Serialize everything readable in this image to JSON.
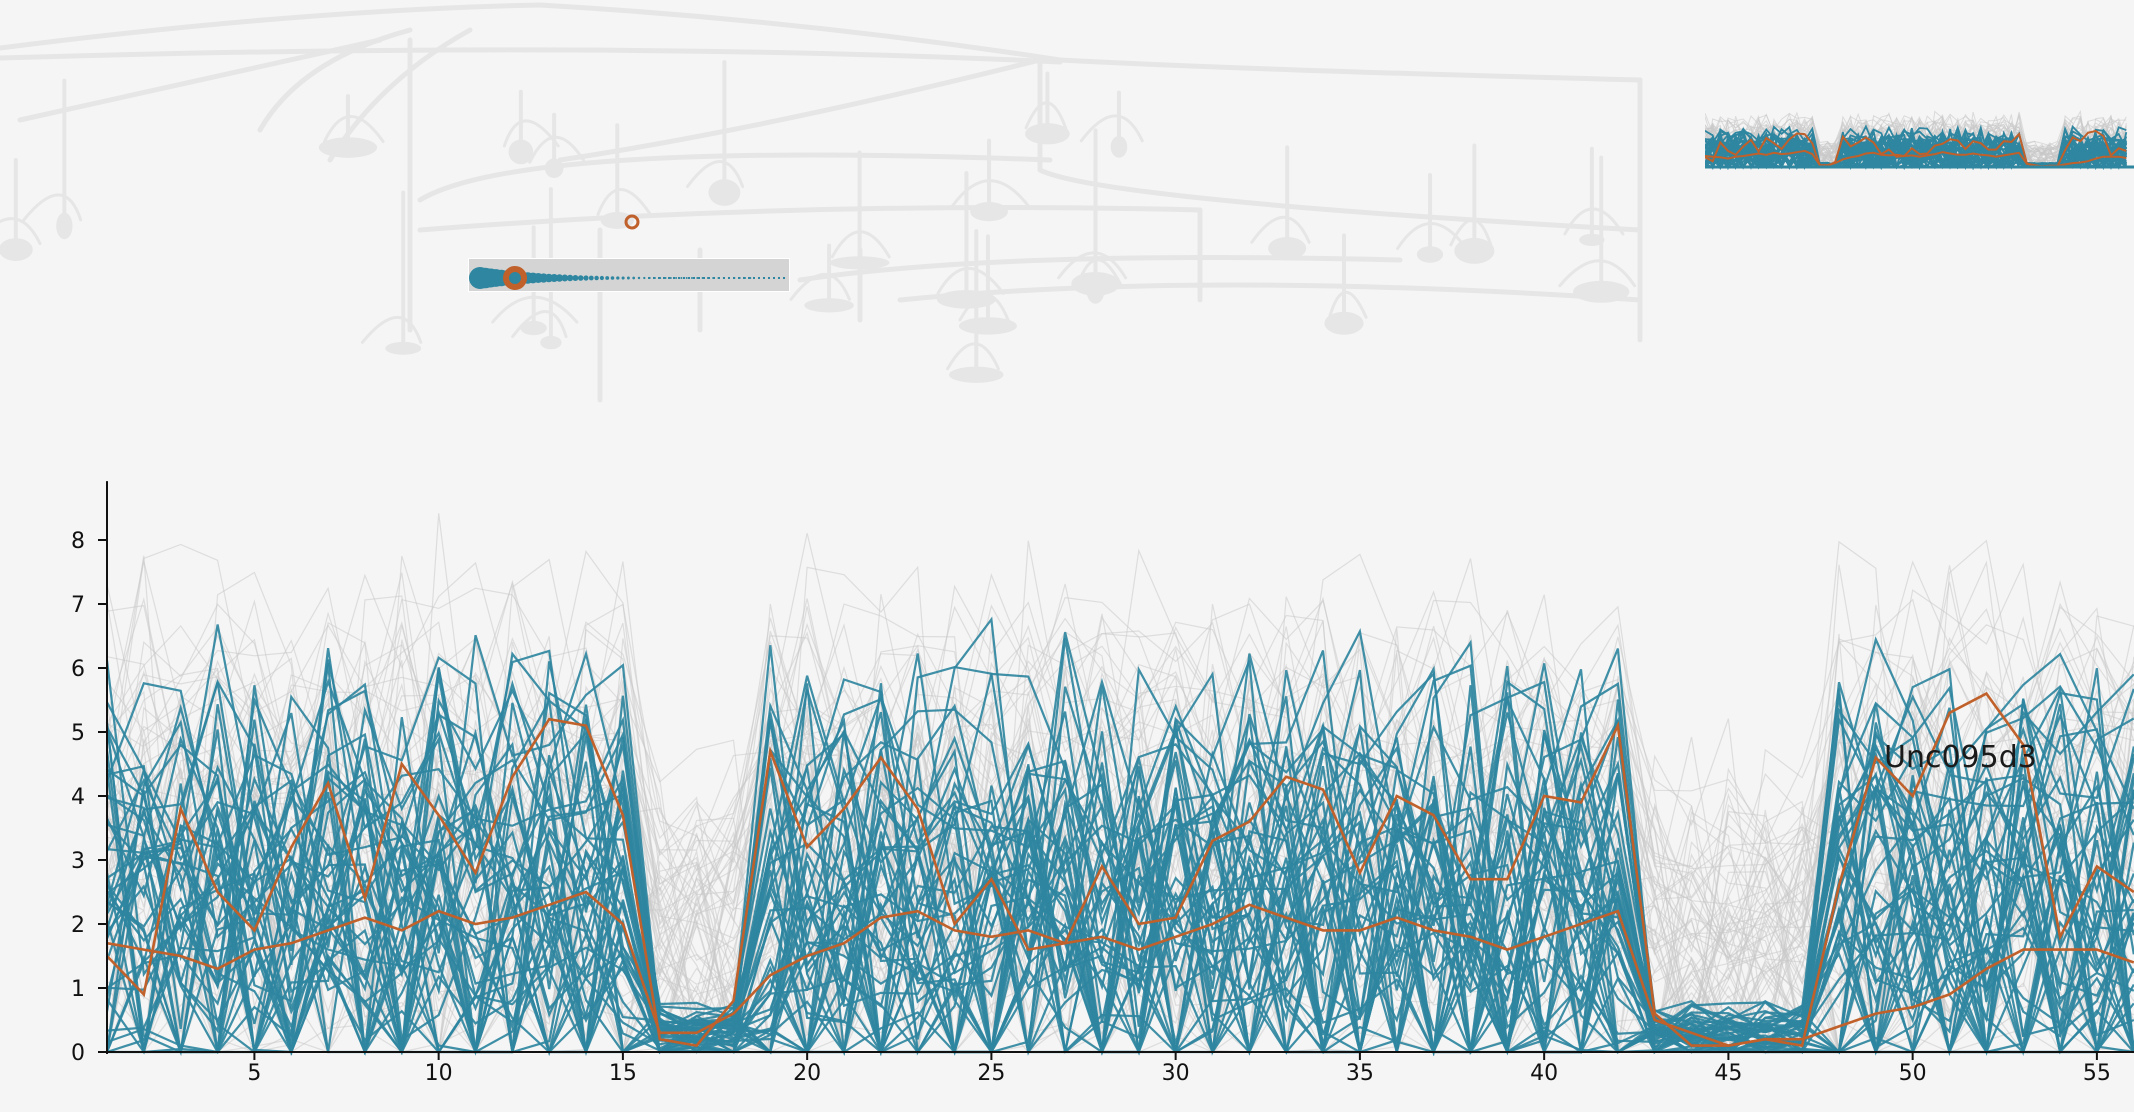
{
  "colors": {
    "background": "#f5f5f5",
    "highlight": "#2f86a0",
    "selected": "#c0602a",
    "context": "#c8c8c8",
    "tree": "#e6e6e6",
    "hist_bg": "#d4d4d4"
  },
  "tree": {
    "description": "faint dendrogram of clusters in background"
  },
  "histogram": {
    "marker": "orange-ring"
  },
  "thumbnail": {
    "type": "mini-line-overview"
  },
  "chart_data": {
    "type": "line",
    "x": [
      1,
      2,
      3,
      4,
      5,
      6,
      7,
      8,
      9,
      10,
      11,
      12,
      13,
      14,
      15,
      16,
      17,
      18,
      19,
      20,
      21,
      22,
      23,
      24,
      25,
      26,
      27,
      28,
      29,
      30,
      31,
      32,
      33,
      34,
      35,
      36,
      37,
      38,
      39,
      40,
      41,
      42,
      43,
      44,
      45,
      46,
      47,
      48,
      49,
      50,
      51,
      52,
      53,
      54,
      55,
      56
    ],
    "xticks": [
      5,
      10,
      15,
      20,
      25,
      30,
      35,
      40,
      45,
      50,
      55
    ],
    "yticks": [
      0,
      1,
      2,
      3,
      4,
      5,
      6,
      7,
      8
    ],
    "ylim": [
      0,
      9
    ],
    "xlim": [
      1,
      56.6
    ],
    "annotation": "Unc095d3",
    "series": [
      {
        "role": "selected",
        "values": [
          1.5,
          0.9,
          3.8,
          2.5,
          1.9,
          3.2,
          4.2,
          2.4,
          4.5,
          3.7,
          2.8,
          4.3,
          5.2,
          5.1,
          3.7,
          0.2,
          0.1,
          0.8,
          4.7,
          3.2,
          3.8,
          4.6,
          3.8,
          2.0,
          2.7,
          1.6,
          1.7,
          2.9,
          2.0,
          2.1,
          3.3,
          3.6,
          4.3,
          4.1,
          2.8,
          4.0,
          3.7,
          2.7,
          2.7,
          4.0,
          3.9,
          5.1,
          0.6,
          0.1,
          0.1,
          0.2,
          0.1,
          2.6,
          4.6,
          4.0,
          5.3,
          5.6,
          4.8,
          1.8,
          2.9,
          2.5
        ]
      },
      {
        "role": "selected",
        "values": [
          1.7,
          1.6,
          1.5,
          1.3,
          1.6,
          1.7,
          1.9,
          2.1,
          1.9,
          2.2,
          2.0,
          2.1,
          2.3,
          2.5,
          2.0,
          0.3,
          0.3,
          0.6,
          1.2,
          1.5,
          1.7,
          2.1,
          2.2,
          1.9,
          1.8,
          1.9,
          1.7,
          1.8,
          1.6,
          1.8,
          2.0,
          2.3,
          2.1,
          1.9,
          1.9,
          2.1,
          1.9,
          1.8,
          1.6,
          1.8,
          2.0,
          2.2,
          0.5,
          0.3,
          0.1,
          0.2,
          0.2,
          0.4,
          0.6,
          0.7,
          0.9,
          1.3,
          1.6,
          1.6,
          1.6,
          1.4
        ]
      }
    ]
  }
}
